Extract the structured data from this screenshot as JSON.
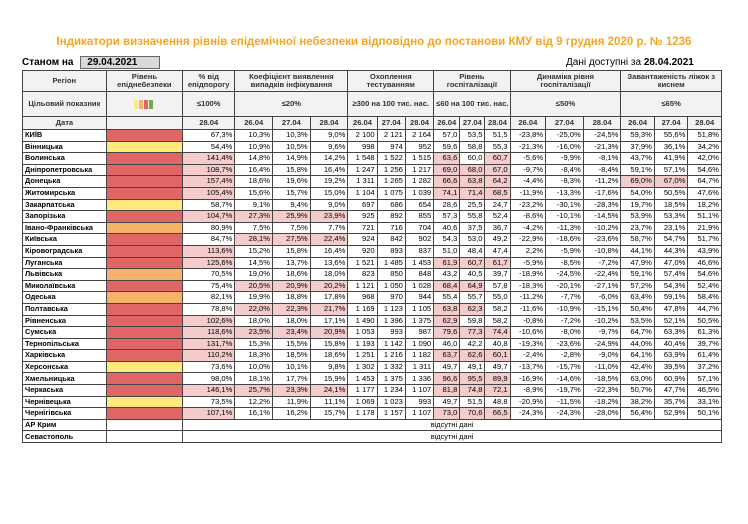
{
  "title": "Індикатори визначення рівнів епідемічної небезпеки відповідно до постанови КМУ від 9 грудня 2020 р. № 1236",
  "as_of_label": "Станом на",
  "as_of_date": "29.04.2021",
  "available_label": "Дані доступні за",
  "available_date": "28.04.2021",
  "headers": {
    "region": "Регіон",
    "level": "Рівень епіднебезпеки",
    "threshold_pct": "% від епідпорогу",
    "detect_coef": "Коефіцієнт виявлення випадків інфікування",
    "testing": "Охоплення тестуванням",
    "hosp_level": "Рівень госпіталізації",
    "hosp_dynamics": "Динаміка рівня госпіталізації",
    "bed_load": "Завантаженість ліжок з киснем",
    "target": "Цільовий показник",
    "date": "Дата"
  },
  "targets": {
    "threshold": "≤100%",
    "detect": "≤20%",
    "testing": "≥300 на 100 тис. нас.",
    "hosp": "≤60 на 100 тис. нас.",
    "dyn": "≤50%",
    "beds": "≤65%"
  },
  "legend_colors": [
    "#ffe97a",
    "#f6b26b",
    "#e06666",
    "#70ad47"
  ],
  "dates": {
    "single": "28.04",
    "triple": [
      "26.04",
      "27.04",
      "28.04"
    ]
  },
  "level_colors": {
    "red": "#e06666",
    "orange": "#f6b26b",
    "yellow": "#ffe97a",
    "highlight": "#f4cccc"
  },
  "regions": [
    {
      "name": "КИЇВ",
      "level": "red",
      "th": "67,3%",
      "d": [
        "10,3%",
        "10,3%",
        "9,0%"
      ],
      "t": [
        "2 100",
        "2 121",
        "2 164"
      ],
      "h": [
        "57,0",
        "53,5",
        "51,5"
      ],
      "dy": [
        "-23,8%",
        "-25,0%",
        "-24,5%"
      ],
      "b": [
        "59,3%",
        "55,6%",
        "51,8%"
      ]
    },
    {
      "name": "Вінницька",
      "level": "yellow",
      "th": "54,4%",
      "d": [
        "10,9%",
        "10,5%",
        "9,6%"
      ],
      "t": [
        "998",
        "974",
        "952"
      ],
      "h": [
        "59,6",
        "58,8",
        "55,3"
      ],
      "dy": [
        "-21,3%",
        "-16,0%",
        "-21,3%"
      ],
      "b": [
        "37,9%",
        "36,1%",
        "34,2%"
      ]
    },
    {
      "name": "Волинська",
      "level": "red",
      "th": "141,4%",
      "d": [
        "14,8%",
        "14,9%",
        "14,2%"
      ],
      "t": [
        "1 548",
        "1 522",
        "1 515"
      ],
      "h": [
        "63,6",
        "60,0",
        "60,7"
      ],
      "dy": [
        "-5,6%",
        "-9,9%",
        "-8,1%"
      ],
      "b": [
        "43,7%",
        "41,9%",
        "42,0%"
      ]
    },
    {
      "name": "Дніпропетровська",
      "level": "red",
      "th": "108,7%",
      "d": [
        "16,4%",
        "15,8%",
        "16,4%"
      ],
      "t": [
        "1 247",
        "1 256",
        "1 217"
      ],
      "h": [
        "69,0",
        "68,0",
        "67,0"
      ],
      "dy": [
        "-9,7%",
        "-8,4%",
        "-8,4%"
      ],
      "b": [
        "59,1%",
        "57,1%",
        "54,6%"
      ]
    },
    {
      "name": "Донецька",
      "level": "red",
      "th": "157,4%",
      "d": [
        "18,6%",
        "19,6%",
        "19,2%"
      ],
      "t": [
        "1 311",
        "1 265",
        "1 282"
      ],
      "h": [
        "66,6",
        "63,8",
        "64,2"
      ],
      "dy": [
        "-4,4%",
        "-8,3%",
        "-11,2%"
      ],
      "b": [
        "69,0%",
        "67,0%",
        "64,7%"
      ]
    },
    {
      "name": "Житомирська",
      "level": "red",
      "th": "105,4%",
      "d": [
        "15,6%",
        "15,7%",
        "15,0%"
      ],
      "t": [
        "1 104",
        "1 075",
        "1 039"
      ],
      "h": [
        "74,1",
        "71,4",
        "68,5"
      ],
      "dy": [
        "-11,9%",
        "-13,3%",
        "-17,6%"
      ],
      "b": [
        "54,0%",
        "50,5%",
        "47,6%"
      ]
    },
    {
      "name": "Закарпатська",
      "level": "yellow",
      "th": "58,7%",
      "d": [
        "9,1%",
        "9,4%",
        "9,0%"
      ],
      "t": [
        "697",
        "686",
        "654"
      ],
      "h": [
        "28,6",
        "25,5",
        "24,7"
      ],
      "dy": [
        "-23,2%",
        "-30,1%",
        "-28,3%"
      ],
      "b": [
        "19,7%",
        "18,5%",
        "18,2%"
      ]
    },
    {
      "name": "Запорізька",
      "level": "red",
      "th": "104,7%",
      "d": [
        "27,3%",
        "25,9%",
        "23,9%"
      ],
      "t": [
        "925",
        "892",
        "855"
      ],
      "h": [
        "57,3",
        "55,8",
        "52,4"
      ],
      "dy": [
        "-8,6%",
        "-10,1%",
        "-14,5%"
      ],
      "b": [
        "53,9%",
        "53,3%",
        "51,1%"
      ]
    },
    {
      "name": "Івано-Франківська",
      "level": "orange",
      "th": "80,9%",
      "d": [
        "7,5%",
        "7,5%",
        "7,7%"
      ],
      "t": [
        "721",
        "716",
        "704"
      ],
      "h": [
        "40,6",
        "37,5",
        "36,7"
      ],
      "dy": [
        "-4,2%",
        "-11,3%",
        "-10,2%"
      ],
      "b": [
        "23,7%",
        "23,1%",
        "21,9%"
      ]
    },
    {
      "name": "Київська",
      "level": "red",
      "th": "84,7%",
      "d": [
        "28,1%",
        "27,5%",
        "22,4%"
      ],
      "t": [
        "924",
        "842",
        "902"
      ],
      "h": [
        "54,3",
        "53,0",
        "49,2"
      ],
      "dy": [
        "-22,9%",
        "-18,6%",
        "-23,6%"
      ],
      "b": [
        "58,7%",
        "54,7%",
        "51,7%"
      ]
    },
    {
      "name": "Кіровоградська",
      "level": "red",
      "th": "113,6%",
      "d": [
        "15,2%",
        "15,8%",
        "16,4%"
      ],
      "t": [
        "920",
        "893",
        "837"
      ],
      "h": [
        "51,0",
        "48,4",
        "47,4"
      ],
      "dy": [
        "2,2%",
        "-5,9%",
        "-10,8%"
      ],
      "b": [
        "44,1%",
        "44,3%",
        "43,9%"
      ]
    },
    {
      "name": "Луганська",
      "level": "red",
      "th": "125,6%",
      "d": [
        "14,5%",
        "13,7%",
        "13,6%"
      ],
      "t": [
        "1 521",
        "1 485",
        "1 453"
      ],
      "h": [
        "61,9",
        "60,7",
        "61,7"
      ],
      "dy": [
        "-5,9%",
        "-8,5%",
        "-7,2%"
      ],
      "b": [
        "47,9%",
        "47,0%",
        "46,6%"
      ]
    },
    {
      "name": "Львівська",
      "level": "orange",
      "th": "70,5%",
      "d": [
        "19,0%",
        "18,6%",
        "18,0%"
      ],
      "t": [
        "823",
        "850",
        "848"
      ],
      "h": [
        "43,2",
        "40,5",
        "39,7"
      ],
      "dy": [
        "-18,9%",
        "-24,5%",
        "-22,4%"
      ],
      "b": [
        "59,1%",
        "57,4%",
        "54,6%"
      ]
    },
    {
      "name": "Миколаївська",
      "level": "red",
      "th": "75,4%",
      "d": [
        "20,5%",
        "20,9%",
        "20,2%"
      ],
      "t": [
        "1 121",
        "1 050",
        "1 028"
      ],
      "h": [
        "68,4",
        "64,9",
        "57,8"
      ],
      "dy": [
        "-18,3%",
        "-20,1%",
        "-27,1%"
      ],
      "b": [
        "57,2%",
        "54,3%",
        "52,4%"
      ]
    },
    {
      "name": "Одеська",
      "level": "orange",
      "th": "82,1%",
      "d": [
        "19,9%",
        "18,8%",
        "17,8%"
      ],
      "t": [
        "968",
        "970",
        "944"
      ],
      "h": [
        "55,4",
        "55,7",
        "55,0"
      ],
      "dy": [
        "-11,2%",
        "-7,7%",
        "-6,0%"
      ],
      "b": [
        "63,4%",
        "59,1%",
        "58,4%"
      ]
    },
    {
      "name": "Полтавська",
      "level": "red",
      "th": "78,8%",
      "d": [
        "22,0%",
        "22,3%",
        "21,7%"
      ],
      "t": [
        "1 169",
        "1 123",
        "1 105"
      ],
      "h": [
        "63,8",
        "62,3",
        "58,2"
      ],
      "dy": [
        "-11,6%",
        "-10,9%",
        "-15,1%"
      ],
      "b": [
        "50,4%",
        "47,8%",
        "44,7%"
      ]
    },
    {
      "name": "Рівненська",
      "level": "red",
      "th": "102,6%",
      "d": [
        "18,0%",
        "18,0%",
        "17,1%"
      ],
      "t": [
        "1 490",
        "1 396",
        "1 375"
      ],
      "h": [
        "62,9",
        "59,8",
        "58,2"
      ],
      "dy": [
        "-0,8%",
        "-7,2%",
        "-10,2%"
      ],
      "b": [
        "53,5%",
        "52,1%",
        "50,5%"
      ]
    },
    {
      "name": "Сумська",
      "level": "red",
      "th": "118,6%",
      "d": [
        "23,5%",
        "23,4%",
        "20,9%"
      ],
      "t": [
        "1 053",
        "993",
        "987"
      ],
      "h": [
        "79,6",
        "77,3",
        "74,4"
      ],
      "dy": [
        "-10,6%",
        "-8,0%",
        "-9,7%"
      ],
      "b": [
        "64,7%",
        "63,3%",
        "61,3%"
      ]
    },
    {
      "name": "Тернопільська",
      "level": "red",
      "th": "131,7%",
      "d": [
        "15,3%",
        "15,5%",
        "15,8%"
      ],
      "t": [
        "1 193",
        "1 142",
        "1 090"
      ],
      "h": [
        "46,0",
        "42,2",
        "40,8"
      ],
      "dy": [
        "-19,3%",
        "-23,6%",
        "-24,9%"
      ],
      "b": [
        "44,0%",
        "40,4%",
        "39,7%"
      ]
    },
    {
      "name": "Харківська",
      "level": "red",
      "th": "110,2%",
      "d": [
        "18,3%",
        "18,5%",
        "18,6%"
      ],
      "t": [
        "1 251",
        "1 216",
        "1 182"
      ],
      "h": [
        "63,7",
        "62,6",
        "60,1"
      ],
      "dy": [
        "-2,4%",
        "-2,8%",
        "-9,0%"
      ],
      "b": [
        "64,1%",
        "63,9%",
        "61,4%"
      ]
    },
    {
      "name": "Херсонська",
      "level": "yellow",
      "th": "73,6%",
      "d": [
        "10,0%",
        "10,1%",
        "9,8%"
      ],
      "t": [
        "1 302",
        "1 332",
        "1 311"
      ],
      "h": [
        "49,7",
        "49,1",
        "49,7"
      ],
      "dy": [
        "-13,7%",
        "-15,7%",
        "-11,0%"
      ],
      "b": [
        "42,4%",
        "39,5%",
        "37,2%"
      ]
    },
    {
      "name": "Хмельницька",
      "level": "red",
      "th": "98,0%",
      "d": [
        "18,1%",
        "17,7%",
        "15,9%"
      ],
      "t": [
        "1 453",
        "1 375",
        "1 336"
      ],
      "h": [
        "96,6",
        "95,5",
        "89,9"
      ],
      "dy": [
        "-16,9%",
        "-14,6%",
        "-18,5%"
      ],
      "b": [
        "63,0%",
        "60,9%",
        "57,1%"
      ]
    },
    {
      "name": "Черкаська",
      "level": "red",
      "th": "146,1%",
      "d": [
        "25,7%",
        "23,3%",
        "24,1%"
      ],
      "t": [
        "1 177",
        "1 234",
        "1 107"
      ],
      "h": [
        "81,8",
        "74,8",
        "72,1"
      ],
      "dy": [
        "-8,9%",
        "-19,7%",
        "-22,3%"
      ],
      "b": [
        "50,7%",
        "47,7%",
        "46,5%"
      ]
    },
    {
      "name": "Чернівецька",
      "level": "yellow",
      "th": "73,5%",
      "d": [
        "12,2%",
        "11,9%",
        "11,1%"
      ],
      "t": [
        "1 069",
        "1 023",
        "993"
      ],
      "h": [
        "49,7",
        "51,5",
        "48,8"
      ],
      "dy": [
        "-20,9%",
        "-11,5%",
        "-18,2%"
      ],
      "b": [
        "38,2%",
        "35,7%",
        "33,1%"
      ]
    },
    {
      "name": "Чернігівська",
      "level": "red",
      "th": "107,1%",
      "d": [
        "16,1%",
        "16,2%",
        "15,7%"
      ],
      "t": [
        "1 178",
        "1 157",
        "1 107"
      ],
      "h": [
        "73,0",
        "70,6",
        "66,5"
      ],
      "dy": [
        "-24,3%",
        "-24,3%",
        "-28,0%"
      ],
      "b": [
        "56,4%",
        "52,9%",
        "50,1%"
      ]
    }
  ],
  "missing_regions": [
    {
      "name": "АР Крим",
      "note": "відсутні дані"
    },
    {
      "name": "Севастополь",
      "note": "відсутні дані"
    }
  ]
}
